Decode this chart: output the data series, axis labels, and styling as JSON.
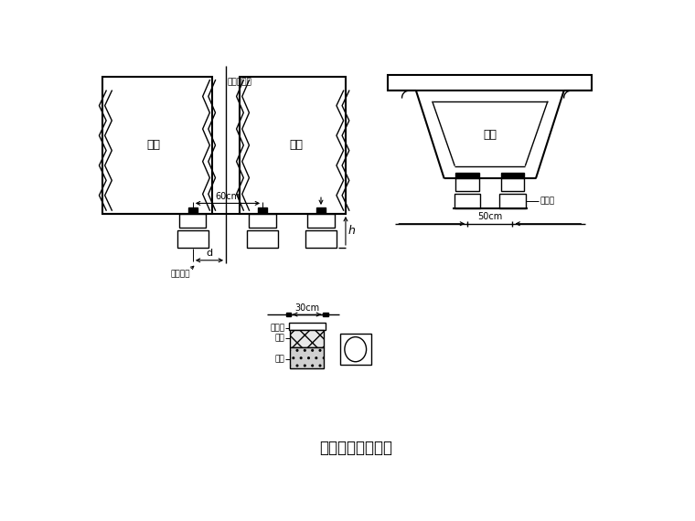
{
  "title": "非连续端临时支座",
  "bg_color": "#ffffff",
  "line_color": "#000000",
  "label_left_beam": "主棁",
  "label_right_beam": "主棁",
  "label_center": "接缝中心线",
  "label_60cm": "60cm",
  "label_50cm": "50cm",
  "label_30cm": "30cm",
  "label_d": "d",
  "label_h": "h",
  "label_linshi": "临时支座",
  "label_gangdiban": "锂垆板",
  "label_lvshi": "卤石",
  "label_shaji": "沙浆"
}
